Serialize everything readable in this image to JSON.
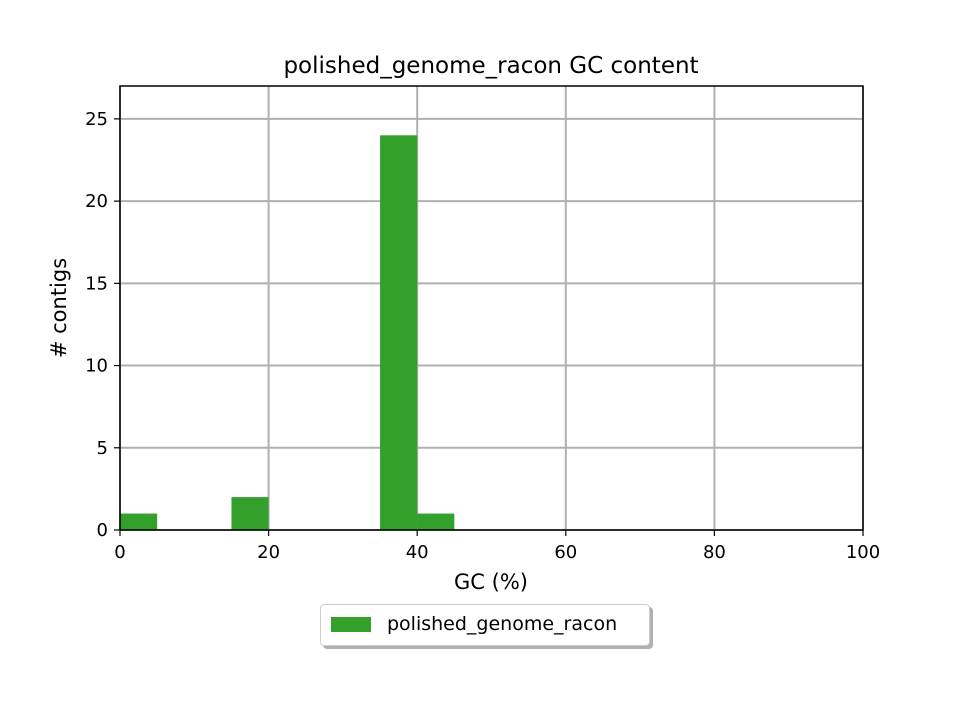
{
  "chart_data": {
    "type": "bar",
    "title": "polished_genome_racon GC content",
    "xlabel": "GC (%)",
    "ylabel": "# contigs",
    "xlim": [
      0,
      100
    ],
    "ylim": [
      0,
      27
    ],
    "xticks": [
      0,
      20,
      40,
      60,
      80,
      100
    ],
    "yticks": [
      0,
      5,
      10,
      15,
      20,
      25
    ],
    "grid": true,
    "legend_position": "bottom-center",
    "bin_width": 5,
    "series": [
      {
        "name": "polished_genome_racon",
        "color": "#33a02c",
        "bins": [
          {
            "x_start": 0,
            "x_end": 5,
            "value": 1
          },
          {
            "x_start": 15,
            "x_end": 20,
            "value": 2
          },
          {
            "x_start": 35,
            "x_end": 40,
            "value": 24
          },
          {
            "x_start": 40,
            "x_end": 45,
            "value": 1
          }
        ]
      }
    ]
  }
}
